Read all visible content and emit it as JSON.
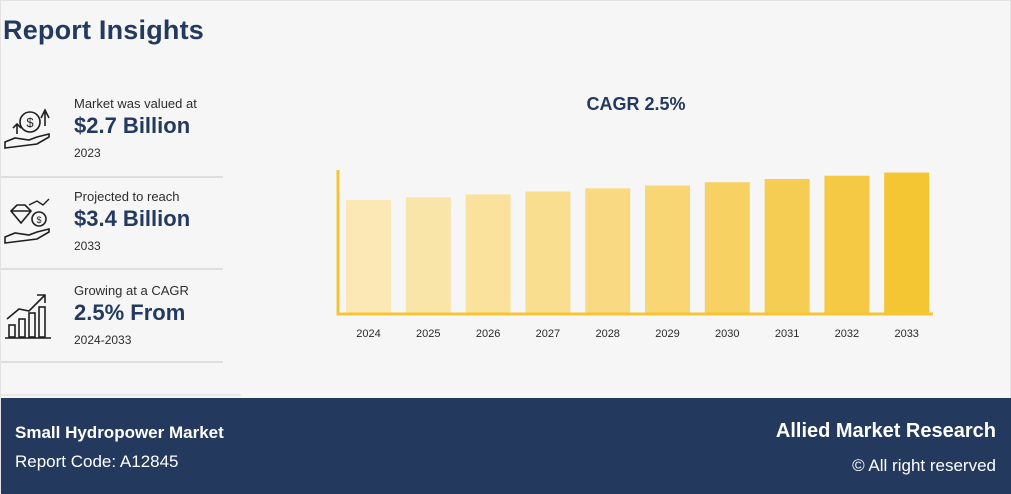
{
  "header": {
    "title": "Report Insights"
  },
  "insights": [
    {
      "lead": "Market was valued at",
      "value": "$2.7 Billion",
      "year": "2023",
      "icon": "money-hand-icon"
    },
    {
      "lead": "Projected to reach",
      "value": "$3.4 Billion",
      "year": "2033",
      "icon": "diamond-coin-hand-icon"
    },
    {
      "lead": "Growing at a CAGR",
      "value": "2.5% From",
      "year": "2024-2033",
      "icon": "growth-bars-icon"
    }
  ],
  "chart_data": {
    "type": "bar",
    "title": "CAGR 2.5%",
    "categories": [
      "2024",
      "2025",
      "2026",
      "2027",
      "2028",
      "2029",
      "2030",
      "2031",
      "2032",
      "2033"
    ],
    "values": [
      2.77,
      2.84,
      2.91,
      2.98,
      3.06,
      3.13,
      3.21,
      3.29,
      3.37,
      3.45
    ],
    "ylim": [
      0,
      3.45
    ],
    "xlabel": "",
    "ylabel": "",
    "grid": false,
    "colors": [
      "#fbe8b4",
      "#fae5a8",
      "#fae29c",
      "#f9de90",
      "#f9da82",
      "#f8d673",
      "#f7d263",
      "#f6cd53",
      "#f5c944",
      "#f4c634"
    ],
    "axis_color": "#f4c634"
  },
  "footer": {
    "market_name": "Small Hydropower Market",
    "report_code": "Report Code: A12845",
    "brand": "Allied Market Research",
    "rights": "© All right reserved"
  },
  "colors": {
    "navy": "#233a5e",
    "gold": "#f4c634",
    "background": "#f6f6f6"
  }
}
